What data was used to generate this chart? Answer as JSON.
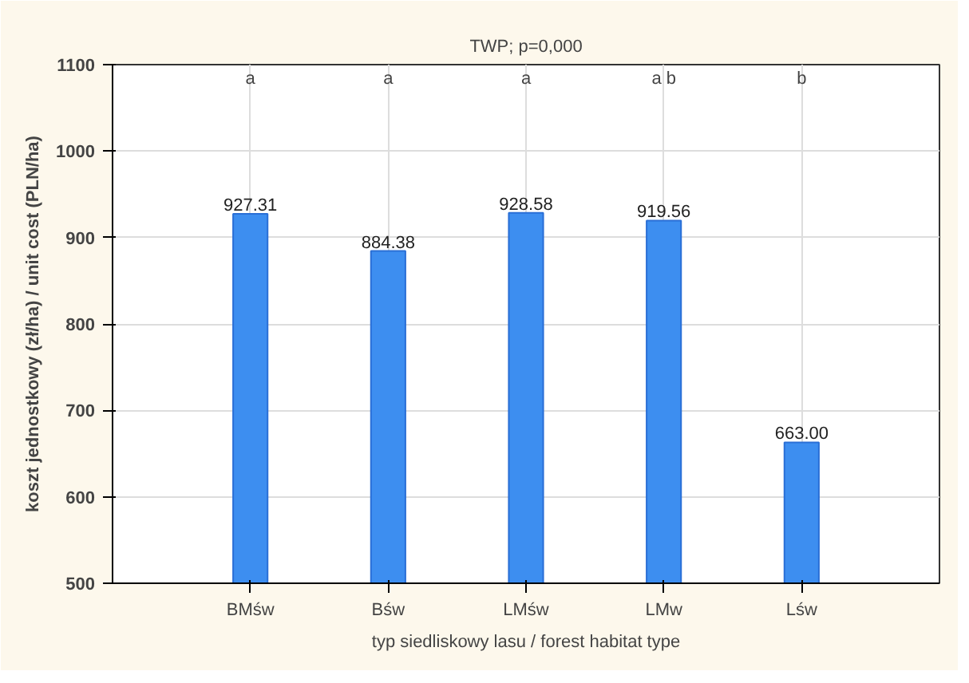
{
  "chart_data": {
    "type": "bar",
    "title": "TWP; p=0,000",
    "xlabel": "typ siedliskowy lasu / forest habitat type",
    "ylabel": "koszt jednostkowy (zł/ha) / unit cost (PLN/ha)",
    "categories": [
      "BMśw",
      "Bśw",
      "LMśw",
      "LMw",
      "Lśw"
    ],
    "values": [
      927.31,
      884.38,
      928.58,
      919.56,
      663.0
    ],
    "value_labels": [
      "927.31",
      "884.38",
      "928.58",
      "919.56",
      "663.00"
    ],
    "color": "#3d8ef0",
    "ylim": [
      500,
      1100
    ],
    "yticks": [
      500,
      600,
      700,
      800,
      900,
      1000,
      1100
    ],
    "grid": true,
    "annotations": [
      "a",
      "a",
      "a",
      "a b",
      "b"
    ]
  }
}
